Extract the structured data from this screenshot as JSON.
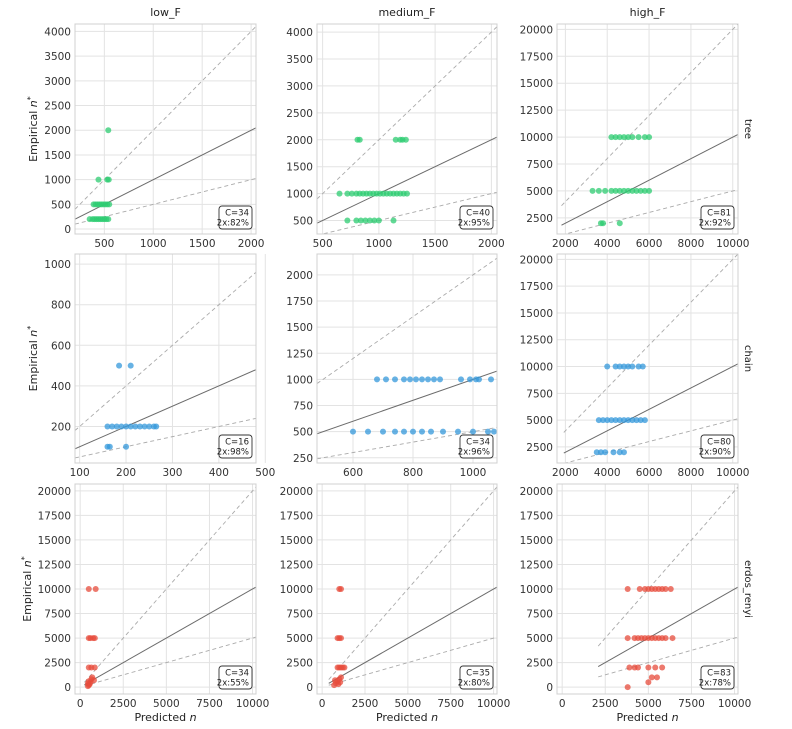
{
  "chart_data": [
    {
      "type": "scatter",
      "col_title": "low_F",
      "row_label": "",
      "ylabel": "Empirical n*",
      "xlabel": "",
      "color": "#2ecc71",
      "xlim": [
        200,
        2050
      ],
      "ylim": [
        -100,
        4150
      ],
      "xticks": [
        "500",
        "1000",
        "1500",
        "2000"
      ],
      "xtick_values": [
        500,
        1000,
        1500,
        2000
      ],
      "yticks": [
        "0",
        "500",
        "1000",
        "1500",
        "2000",
        "2500",
        "3000",
        "3500",
        "4000"
      ],
      "ytick_values": [
        0,
        500,
        1000,
        1500,
        2000,
        2500,
        3000,
        3500,
        4000
      ],
      "stats": {
        "c": "C=34",
        "pct": "2x:82%"
      },
      "points": [
        [
          350,
          200
        ],
        [
          380,
          200
        ],
        [
          400,
          200
        ],
        [
          420,
          200
        ],
        [
          440,
          200
        ],
        [
          460,
          200
        ],
        [
          480,
          200
        ],
        [
          500,
          200
        ],
        [
          520,
          200
        ],
        [
          540,
          200
        ],
        [
          390,
          500
        ],
        [
          410,
          500
        ],
        [
          430,
          500
        ],
        [
          450,
          500
        ],
        [
          470,
          500
        ],
        [
          490,
          500
        ],
        [
          510,
          500
        ],
        [
          530,
          500
        ],
        [
          550,
          500
        ],
        [
          440,
          1000
        ],
        [
          530,
          1000
        ],
        [
          545,
          1000
        ],
        [
          540,
          2000
        ]
      ]
    },
    {
      "type": "scatter",
      "col_title": "medium_F",
      "row_label": "",
      "ylabel": "",
      "xlabel": "",
      "color": "#2ecc71",
      "xlim": [
        450,
        2050
      ],
      "ylim": [
        250,
        4150
      ],
      "xticks": [
        "500",
        "1000",
        "1500",
        "2000"
      ],
      "xtick_values": [
        500,
        1000,
        1500,
        2000
      ],
      "yticks": [
        "500",
        "1000",
        "1500",
        "2000",
        "2500",
        "3000",
        "3500",
        "4000"
      ],
      "ytick_values": [
        500,
        1000,
        1500,
        2000,
        2500,
        3000,
        3500,
        4000
      ],
      "stats": {
        "c": "C=40",
        "pct": "2x:95%"
      },
      "points": [
        [
          650,
          1000
        ],
        [
          720,
          1000
        ],
        [
          760,
          1000
        ],
        [
          800,
          1000
        ],
        [
          830,
          1000
        ],
        [
          860,
          1000
        ],
        [
          890,
          1000
        ],
        [
          920,
          1000
        ],
        [
          950,
          1000
        ],
        [
          980,
          1000
        ],
        [
          1010,
          1000
        ],
        [
          1040,
          1000
        ],
        [
          1070,
          1000
        ],
        [
          1100,
          1000
        ],
        [
          1130,
          1000
        ],
        [
          1160,
          1000
        ],
        [
          1190,
          1000
        ],
        [
          1220,
          1000
        ],
        [
          1250,
          1000
        ],
        [
          720,
          500
        ],
        [
          800,
          500
        ],
        [
          840,
          500
        ],
        [
          880,
          500
        ],
        [
          920,
          500
        ],
        [
          960,
          500
        ],
        [
          1000,
          500
        ],
        [
          1130,
          500
        ],
        [
          810,
          2000
        ],
        [
          830,
          2000
        ],
        [
          1150,
          2000
        ],
        [
          1190,
          2000
        ],
        [
          1210,
          2000
        ],
        [
          1240,
          2000
        ]
      ]
    },
    {
      "type": "scatter",
      "col_title": "high_F",
      "row_label": "tree",
      "ylabel": "",
      "xlabel": "",
      "color": "#2ecc71",
      "xlim": [
        1600,
        10250
      ],
      "ylim": [
        1000,
        20500
      ],
      "xticks": [
        "2000",
        "4000",
        "6000",
        "8000",
        "10000"
      ],
      "xtick_values": [
        2000,
        4000,
        6000,
        8000,
        10000
      ],
      "yticks": [
        "2500",
        "5000",
        "7500",
        "10000",
        "12500",
        "15000",
        "17500",
        "20000"
      ],
      "ytick_values": [
        2500,
        5000,
        7500,
        10000,
        12500,
        15000,
        17500,
        20000
      ],
      "stats": {
        "c": "C=81",
        "pct": "2x:92%"
      },
      "points": [
        [
          3300,
          5000
        ],
        [
          3600,
          5000
        ],
        [
          3900,
          5000
        ],
        [
          4200,
          5000
        ],
        [
          4400,
          5000
        ],
        [
          4600,
          5000
        ],
        [
          4800,
          5000
        ],
        [
          5000,
          5000
        ],
        [
          5200,
          5000
        ],
        [
          5400,
          5000
        ],
        [
          5600,
          5000
        ],
        [
          5800,
          5000
        ],
        [
          6000,
          5000
        ],
        [
          4200,
          10000
        ],
        [
          4400,
          10000
        ],
        [
          4600,
          10000
        ],
        [
          4800,
          10000
        ],
        [
          5000,
          10000
        ],
        [
          5200,
          10000
        ],
        [
          5500,
          10000
        ],
        [
          5800,
          10000
        ],
        [
          6000,
          10000
        ],
        [
          3700,
          2000
        ],
        [
          3800,
          2000
        ],
        [
          4600,
          2000
        ]
      ]
    },
    {
      "type": "scatter",
      "col_title": "",
      "row_label": "",
      "ylabel": "Empirical n*",
      "xlabel": "",
      "color": "#3498db",
      "xlim": [
        90,
        480
      ],
      "ylim": [
        20,
        1050
      ],
      "xticks": [
        "100",
        "200",
        "300",
        "400",
        "500"
      ],
      "xtick_values": [
        100,
        200,
        300,
        400,
        500
      ],
      "yticks": [
        "200",
        "400",
        "600",
        "800",
        "1000"
      ],
      "ytick_values": [
        200,
        400,
        600,
        800,
        1000
      ],
      "stats": {
        "c": "C=16",
        "pct": "2x:98%"
      },
      "points": [
        [
          160,
          200
        ],
        [
          170,
          200
        ],
        [
          180,
          200
        ],
        [
          190,
          200
        ],
        [
          200,
          200
        ],
        [
          210,
          200
        ],
        [
          220,
          200
        ],
        [
          230,
          200
        ],
        [
          240,
          200
        ],
        [
          250,
          200
        ],
        [
          260,
          200
        ],
        [
          265,
          200
        ],
        [
          160,
          100
        ],
        [
          165,
          100
        ],
        [
          200,
          100
        ],
        [
          185,
          500
        ],
        [
          210,
          500
        ]
      ]
    },
    {
      "type": "scatter",
      "col_title": "",
      "row_label": "",
      "ylabel": "",
      "xlabel": "",
      "color": "#3498db",
      "xlim": [
        480,
        1080
      ],
      "ylim": [
        200,
        2200
      ],
      "xticks": [
        "600",
        "800",
        "1000"
      ],
      "xtick_values": [
        600,
        800,
        1000
      ],
      "yticks": [
        "250",
        "500",
        "750",
        "1000",
        "1250",
        "1500",
        "1750",
        "2000"
      ],
      "ytick_values": [
        250,
        500,
        750,
        1000,
        1250,
        1500,
        1750,
        2000
      ],
      "stats": {
        "c": "C=34",
        "pct": "2x:96%"
      },
      "points": [
        [
          680,
          1000
        ],
        [
          710,
          1000
        ],
        [
          740,
          1000
        ],
        [
          770,
          1000
        ],
        [
          790,
          1000
        ],
        [
          810,
          1000
        ],
        [
          830,
          1000
        ],
        [
          850,
          1000
        ],
        [
          870,
          1000
        ],
        [
          890,
          1000
        ],
        [
          960,
          1000
        ],
        [
          990,
          1000
        ],
        [
          1010,
          1000
        ],
        [
          1020,
          1000
        ],
        [
          1060,
          1000
        ],
        [
          600,
          500
        ],
        [
          650,
          500
        ],
        [
          700,
          500
        ],
        [
          740,
          500
        ],
        [
          770,
          500
        ],
        [
          800,
          500
        ],
        [
          830,
          500
        ],
        [
          860,
          500
        ],
        [
          900,
          500
        ],
        [
          950,
          500
        ],
        [
          1000,
          500
        ],
        [
          1050,
          500
        ],
        [
          1070,
          500
        ]
      ]
    },
    {
      "type": "scatter",
      "col_title": "",
      "row_label": "chain",
      "ylabel": "",
      "xlabel": "",
      "color": "#3498db",
      "xlim": [
        1600,
        10250
      ],
      "ylim": [
        1000,
        20500
      ],
      "xticks": [
        "2000",
        "4000",
        "6000",
        "8000",
        "10000"
      ],
      "xtick_values": [
        2000,
        4000,
        6000,
        8000,
        10000
      ],
      "yticks": [
        "2500",
        "5000",
        "7500",
        "10000",
        "12500",
        "15000",
        "17500",
        "20000"
      ],
      "ytick_values": [
        2500,
        5000,
        7500,
        10000,
        12500,
        15000,
        17500,
        20000
      ],
      "stats": {
        "c": "C=80",
        "pct": "2x:90%"
      },
      "points": [
        [
          3600,
          5000
        ],
        [
          3800,
          5000
        ],
        [
          4000,
          5000
        ],
        [
          4200,
          5000
        ],
        [
          4400,
          5000
        ],
        [
          4600,
          5000
        ],
        [
          4800,
          5000
        ],
        [
          5000,
          5000
        ],
        [
          5200,
          5000
        ],
        [
          5400,
          5000
        ],
        [
          5600,
          5000
        ],
        [
          5800,
          5000
        ],
        [
          3500,
          2000
        ],
        [
          3700,
          2000
        ],
        [
          3900,
          2000
        ],
        [
          4300,
          2000
        ],
        [
          4600,
          2000
        ],
        [
          4800,
          2000
        ],
        [
          4000,
          10000
        ],
        [
          4400,
          10000
        ],
        [
          4600,
          10000
        ],
        [
          4800,
          10000
        ],
        [
          5000,
          10000
        ],
        [
          5200,
          10000
        ],
        [
          5500,
          10000
        ],
        [
          5700,
          10000
        ]
      ]
    },
    {
      "type": "scatter",
      "col_title": "",
      "row_label": "",
      "ylabel": "Empirical n*",
      "xlabel": "Predicted n",
      "color": "#e74c3c",
      "xlim": [
        -300,
        10200
      ],
      "ylim": [
        -700,
        20700
      ],
      "xticks": [
        "0",
        "2500",
        "5000",
        "7500",
        "10000"
      ],
      "xtick_values": [
        0,
        2500,
        5000,
        7500,
        10000
      ],
      "yticks": [
        "0",
        "2500",
        "5000",
        "7500",
        "10000",
        "12500",
        "15000",
        "17500",
        "20000"
      ],
      "ytick_values": [
        0,
        2500,
        5000,
        7500,
        10000,
        12500,
        15000,
        17500,
        20000
      ],
      "stats": {
        "c": "C=34",
        "pct": "2x:55%"
      },
      "points": [
        [
          450,
          100
        ],
        [
          500,
          200
        ],
        [
          550,
          300
        ],
        [
          600,
          500
        ],
        [
          650,
          800
        ],
        [
          700,
          1000
        ],
        [
          500,
          600
        ],
        [
          450,
          400
        ],
        [
          800,
          700
        ],
        [
          500,
          2000
        ],
        [
          650,
          2000
        ],
        [
          850,
          2000
        ],
        [
          500,
          5000
        ],
        [
          600,
          5000
        ],
        [
          750,
          5000
        ],
        [
          850,
          5000
        ],
        [
          500,
          10000
        ],
        [
          900,
          10000
        ]
      ]
    },
    {
      "type": "scatter",
      "col_title": "",
      "row_label": "",
      "ylabel": "",
      "xlabel": "Predicted n",
      "color": "#e74c3c",
      "xlim": [
        -300,
        10200
      ],
      "ylim": [
        -700,
        20700
      ],
      "xticks": [
        "0",
        "2500",
        "5000",
        "7500",
        "10000"
      ],
      "xtick_values": [
        0,
        2500,
        5000,
        7500,
        10000
      ],
      "yticks": [
        "0",
        "2500",
        "5000",
        "7500",
        "10000",
        "12500",
        "15000",
        "17500",
        "20000"
      ],
      "ytick_values": [
        0,
        2500,
        5000,
        7500,
        10000,
        12500,
        15000,
        17500,
        20000
      ],
      "stats": {
        "c": "C=35",
        "pct": "2x:80%"
      },
      "points": [
        [
          700,
          200
        ],
        [
          800,
          400
        ],
        [
          900,
          600
        ],
        [
          1000,
          800
        ],
        [
          1100,
          1000
        ],
        [
          950,
          300
        ],
        [
          750,
          700
        ],
        [
          1050,
          500
        ],
        [
          900,
          2000
        ],
        [
          1000,
          2000
        ],
        [
          1100,
          2000
        ],
        [
          1200,
          2000
        ],
        [
          1300,
          2000
        ],
        [
          900,
          5000
        ],
        [
          1000,
          5000
        ],
        [
          1100,
          5000
        ],
        [
          1000,
          10000
        ],
        [
          1100,
          10000
        ]
      ]
    },
    {
      "type": "scatter",
      "col_title": "",
      "row_label": "erdos_renyi",
      "ylabel": "",
      "xlabel": "Predicted n",
      "color": "#e74c3c",
      "xlim": [
        -300,
        10200
      ],
      "ylim": [
        -700,
        20700
      ],
      "xticks": [
        "0",
        "2500",
        "5000",
        "7500",
        "10000"
      ],
      "xtick_values": [
        0,
        2500,
        5000,
        7500,
        10000
      ],
      "yticks": [
        "0",
        "2500",
        "5000",
        "7500",
        "10000",
        "12500",
        "15000",
        "17500",
        "20000"
      ],
      "ytick_values": [
        0,
        2500,
        5000,
        7500,
        10000,
        12500,
        15000,
        17500,
        20000
      ],
      "stats": {
        "c": "C=83",
        "pct": "2x:78%"
      },
      "points": [
        [
          3800,
          10000
        ],
        [
          4500,
          10000
        ],
        [
          4800,
          10000
        ],
        [
          5000,
          10000
        ],
        [
          5200,
          10000
        ],
        [
          5400,
          10000
        ],
        [
          5600,
          10000
        ],
        [
          5800,
          10000
        ],
        [
          6000,
          10000
        ],
        [
          6300,
          10000
        ],
        [
          3800,
          5000
        ],
        [
          4200,
          5000
        ],
        [
          4400,
          5000
        ],
        [
          4600,
          5000
        ],
        [
          4800,
          5000
        ],
        [
          5000,
          5000
        ],
        [
          5200,
          5000
        ],
        [
          5400,
          5000
        ],
        [
          5600,
          5000
        ],
        [
          5800,
          5000
        ],
        [
          6000,
          5000
        ],
        [
          6400,
          5000
        ],
        [
          3900,
          2000
        ],
        [
          4200,
          2000
        ],
        [
          4400,
          2000
        ],
        [
          5000,
          2000
        ],
        [
          5400,
          2000
        ],
        [
          5800,
          2000
        ],
        [
          5200,
          1000
        ],
        [
          5500,
          1000
        ],
        [
          3800,
          0
        ],
        [
          5000,
          500
        ]
      ]
    }
  ]
}
